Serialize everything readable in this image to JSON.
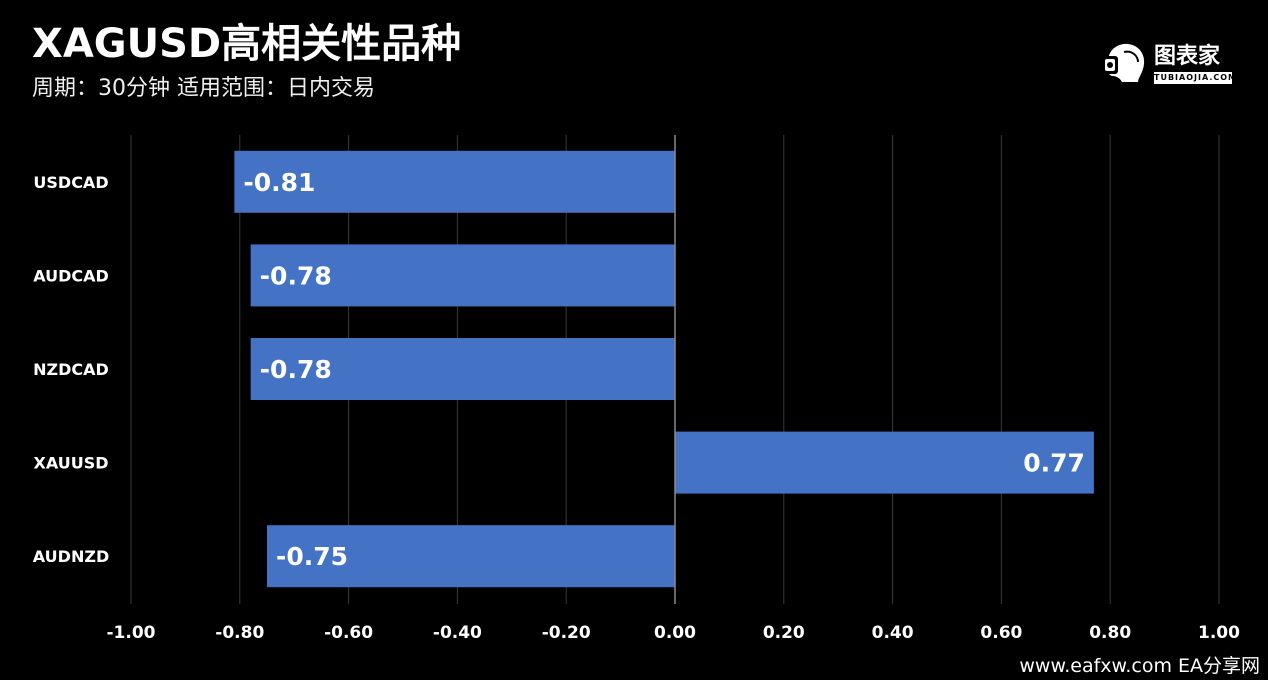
{
  "header": {
    "title": "XAGUSD高相关性品种",
    "subtitle": "周期：30分钟  适用范围：日内交易"
  },
  "brand": {
    "name": "图表家",
    "sub": "TUBIAOJIA.COM",
    "icon": "robot-head-logo-icon"
  },
  "watermark": "www.eafxw.com   EA分享网",
  "colors": {
    "background": "#000000",
    "bar": "#4472c4",
    "grid": "#3a3a3a",
    "zero_axis": "#8a8a8a",
    "text": "#ffffff"
  },
  "chart_data": {
    "type": "bar",
    "orientation": "horizontal",
    "categories": [
      "USDCAD",
      "AUDCAD",
      "NZDCAD",
      "XAUUSD",
      "AUDNZD"
    ],
    "values": [
      -0.81,
      -0.78,
      -0.78,
      0.77,
      -0.75
    ],
    "data_labels": [
      "-0.81",
      "-0.78",
      "-0.78",
      "0.77",
      "-0.75"
    ],
    "xlim": [
      -1.0,
      1.0
    ],
    "xticks": [
      "-1.00",
      "-0.80",
      "-0.60",
      "-0.40",
      "-0.20",
      "0.00",
      "0.20",
      "0.40",
      "0.60",
      "0.80",
      "1.00"
    ],
    "grid": "vertical",
    "legend": "none"
  }
}
